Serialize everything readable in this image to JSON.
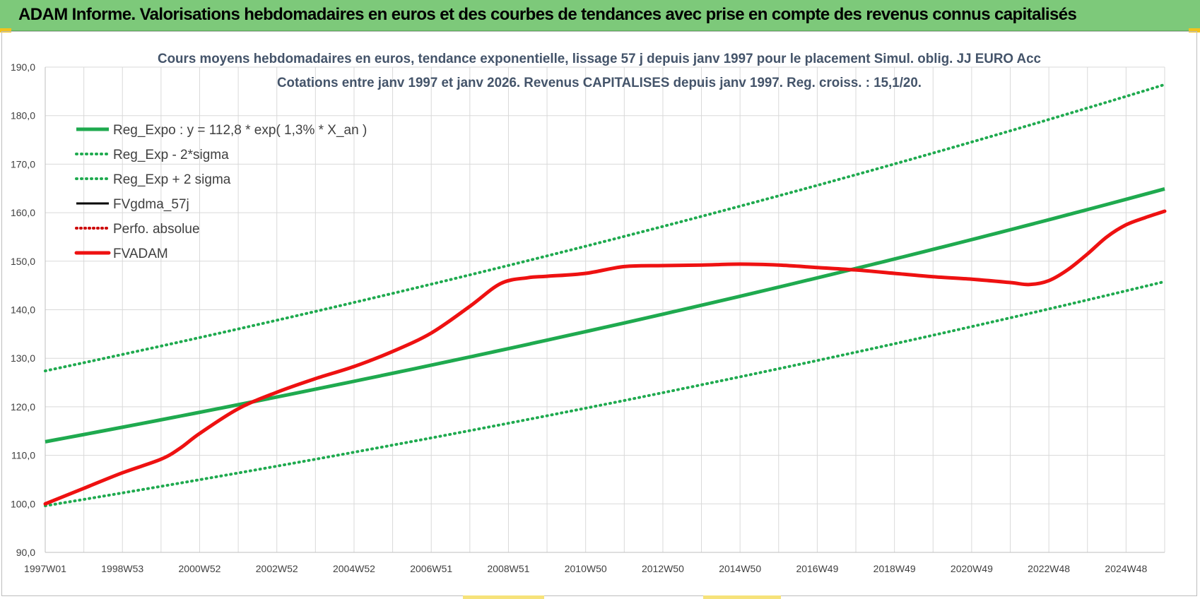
{
  "header": {
    "title": "ADAM Informe. Valorisations hebdomadaires en euros et des courbes de tendances avec prise en compte des revenus connus capitalisés"
  },
  "colors": {
    "banner": "#7dc97a",
    "trend": "#1faa4f",
    "band": "#1faa4f",
    "fvadam": "#ee1111",
    "perfo": "#cc0000",
    "fvgdma": "#000000",
    "grid": "#d9d9d9"
  },
  "chart_data": {
    "type": "line",
    "title": "Cours moyens hebdomadaires en euros, tendance exponentielle, lissage 57 j depuis janv 1997  pour le placement Simul. oblig. JJ EURO Acc",
    "subtitle": "Cotations entre janv 1997 et janv 2026. Revenus  CAPITALISES depuis janv 1997. Reg. croiss. : 15,1/20.",
    "xlabel": "",
    "ylabel": "",
    "ylim": [
      90,
      190
    ],
    "xlim": [
      1997.0,
      2026.0
    ],
    "grid": true,
    "legend_position": "top-left",
    "y_ticks": [
      "90,0",
      "100,0",
      "110,0",
      "120,0",
      "130,0",
      "140,0",
      "150,0",
      "160,0",
      "170,0",
      "180,0",
      "190,0"
    ],
    "y_tick_values": [
      90,
      100,
      110,
      120,
      130,
      140,
      150,
      160,
      170,
      180,
      190
    ],
    "x_ticks": [
      "1997W01",
      "1998W53",
      "2000W52",
      "2002W52",
      "2004W52",
      "2006W51",
      "2008W51",
      "2010W50",
      "2012W50",
      "2014W50",
      "2016W49",
      "2018W49",
      "2020W49",
      "2022W48",
      "2024W48"
    ],
    "x_tick_values": [
      1997.0,
      1999.0,
      2001.0,
      2003.0,
      2005.0,
      2007.0,
      2009.0,
      2011.0,
      2013.0,
      2015.0,
      2017.0,
      2019.0,
      2021.0,
      2023.0,
      2025.0
    ],
    "legend": [
      {
        "key": "reg_expo",
        "label": "Reg_Expo : y = 112,8 * exp( 1,3% *  X_an )"
      },
      {
        "key": "reg_minus",
        "label": "Reg_Exp - 2*sigma"
      },
      {
        "key": "reg_plus",
        "label": "Reg_Exp + 2 sigma"
      },
      {
        "key": "fvgdma",
        "label": "FVgdma_57j"
      },
      {
        "key": "perfo",
        "label": "Perfo. absolue"
      },
      {
        "key": "fvadam",
        "label": "FVADAM"
      }
    ],
    "series": [
      {
        "name": "Reg_Expo : y = 112,8 * exp( 1,3% *  X_an )",
        "key": "reg_expo",
        "x": [
          1997.0,
          2026.0
        ],
        "values": [
          112.8,
          164.9
        ],
        "model": "exponential"
      },
      {
        "name": "Reg_Exp + 2 sigma",
        "key": "reg_plus",
        "x": [
          1997.0,
          2026.0
        ],
        "values": [
          127.4,
          186.4
        ],
        "model": "exponential"
      },
      {
        "name": "Reg_Exp - 2*sigma",
        "key": "reg_minus",
        "x": [
          1997.0,
          2026.0
        ],
        "values": [
          99.6,
          145.8
        ],
        "model": "exponential"
      },
      {
        "name": "FVADAM",
        "key": "fvadam",
        "x": [
          1997.0,
          1998.0,
          1999.0,
          2000.0,
          2000.5,
          2001.0,
          2002.0,
          2003.0,
          2004.0,
          2005.0,
          2006.0,
          2007.0,
          2008.0,
          2008.8,
          2009.5,
          2010.0,
          2011.0,
          2012.0,
          2013.0,
          2014.0,
          2015.0,
          2016.0,
          2017.0,
          2018.0,
          2019.0,
          2020.0,
          2021.0,
          2022.0,
          2022.5,
          2023.0,
          2023.5,
          2024.0,
          2024.5,
          2025.0,
          2025.5,
          2026.0
        ],
        "values": [
          100.0,
          103.2,
          106.4,
          109.2,
          111.5,
          114.5,
          119.6,
          123.0,
          125.8,
          128.3,
          131.4,
          135.2,
          140.7,
          145.4,
          146.6,
          146.9,
          147.5,
          148.9,
          149.1,
          149.2,
          149.4,
          149.2,
          148.7,
          148.2,
          147.5,
          146.8,
          146.3,
          145.6,
          145.2,
          146.0,
          148.3,
          151.5,
          155.0,
          157.5,
          159.0,
          160.3
        ]
      },
      {
        "name": "FVgdma_57j",
        "key": "fvgdma",
        "x": [],
        "values": []
      },
      {
        "name": "Perfo. absolue",
        "key": "perfo",
        "x": [],
        "values": []
      }
    ]
  }
}
